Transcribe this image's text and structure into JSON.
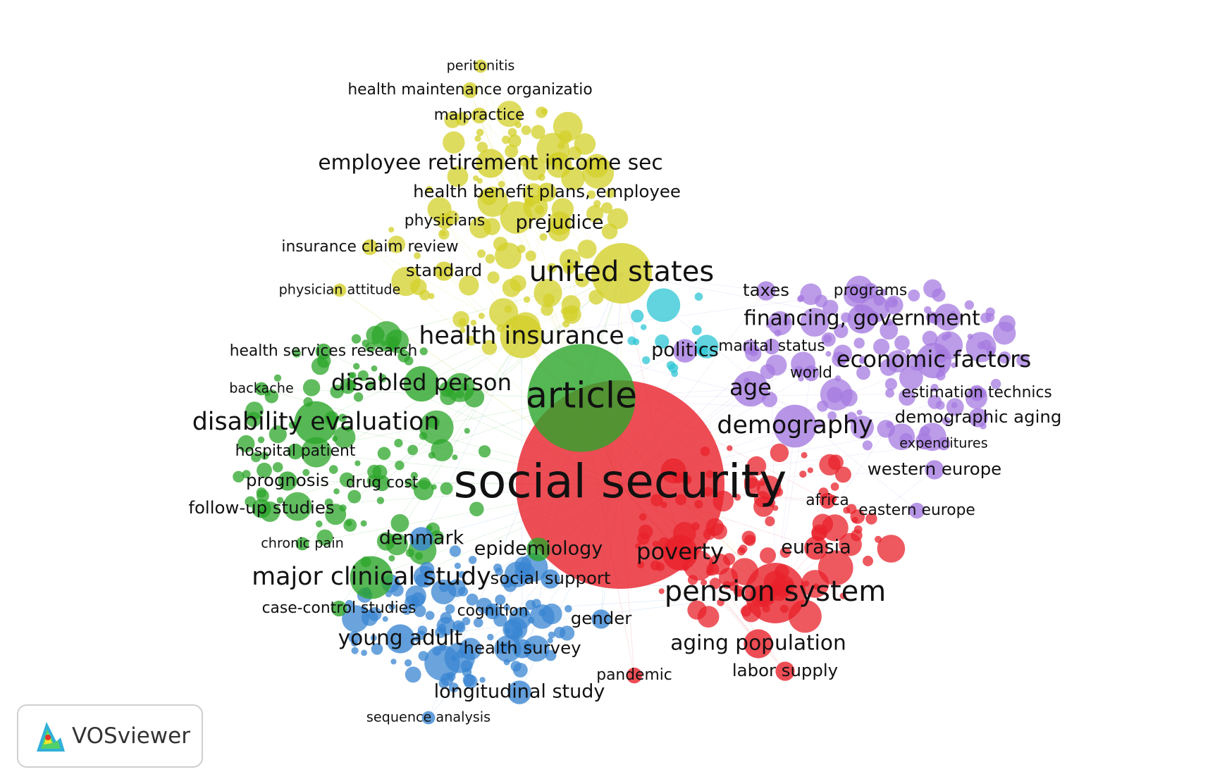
{
  "clusters": [
    {
      "id": "red",
      "color": "#e8212b"
    },
    {
      "id": "green",
      "color": "#2ca52a"
    },
    {
      "id": "blue",
      "color": "#3a86d2"
    },
    {
      "id": "yellow",
      "color": "#d3d02a"
    },
    {
      "id": "purple",
      "color": "#a57be0"
    },
    {
      "id": "cyan",
      "color": "#2ec5d4"
    }
  ],
  "keywords": [
    {
      "label": "social security",
      "cluster": "red",
      "weight": 10
    },
    {
      "label": "article",
      "cluster": "green",
      "weight": 7
    },
    {
      "label": "united states",
      "cluster": "yellow",
      "weight": 5
    },
    {
      "label": "health insurance",
      "cluster": "yellow",
      "weight": 4
    },
    {
      "label": "pension system",
      "cluster": "red",
      "weight": 5
    },
    {
      "label": "disability evaluation",
      "cluster": "green",
      "weight": 4
    },
    {
      "label": "major clinical study",
      "cluster": "green",
      "weight": 4
    },
    {
      "label": "demography",
      "cluster": "purple",
      "weight": 4
    },
    {
      "label": "age",
      "cluster": "purple",
      "weight": 3.5
    },
    {
      "label": "poverty",
      "cluster": "red",
      "weight": 3.5
    },
    {
      "label": "disabled person",
      "cluster": "green",
      "weight": 3.5
    },
    {
      "label": "economic factors",
      "cluster": "purple",
      "weight": 3.5
    },
    {
      "label": "employee retirement income sec",
      "cluster": "yellow",
      "weight": 3
    },
    {
      "label": "financing, government",
      "cluster": "purple",
      "weight": 3
    },
    {
      "label": "aging population",
      "cluster": "red",
      "weight": 3
    },
    {
      "label": "young adult",
      "cluster": "blue",
      "weight": 3
    },
    {
      "label": "longitudinal study",
      "cluster": "blue",
      "weight": 2.5
    },
    {
      "label": "epidemiology",
      "cluster": "green",
      "weight": 2.5
    },
    {
      "label": "denmark",
      "cluster": "blue",
      "weight": 2.5
    },
    {
      "label": "eurasia",
      "cluster": "red",
      "weight": 2.5
    },
    {
      "label": "politics",
      "cluster": "purple",
      "weight": 2.5
    },
    {
      "label": "prejudice",
      "cluster": "yellow",
      "weight": 2.5
    },
    {
      "label": "health benefit plans, employee",
      "cluster": "yellow",
      "weight": 2
    },
    {
      "label": "social support",
      "cluster": "blue",
      "weight": 2
    },
    {
      "label": "follow-up studies",
      "cluster": "green",
      "weight": 2
    },
    {
      "label": "gender",
      "cluster": "blue",
      "weight": 2
    },
    {
      "label": "health survey",
      "cluster": "blue",
      "weight": 2
    },
    {
      "label": "western europe",
      "cluster": "purple",
      "weight": 2
    },
    {
      "label": "labor supply",
      "cluster": "red",
      "weight": 2
    },
    {
      "label": "taxes",
      "cluster": "purple",
      "weight": 2
    },
    {
      "label": "prognosis",
      "cluster": "green",
      "weight": 2
    },
    {
      "label": "standard",
      "cluster": "yellow",
      "weight": 2
    },
    {
      "label": "demographic aging",
      "cluster": "purple",
      "weight": 2
    },
    {
      "label": "health services research",
      "cluster": "green",
      "weight": 1.5
    },
    {
      "label": "insurance claim review",
      "cluster": "yellow",
      "weight": 1.5
    },
    {
      "label": "physicians",
      "cluster": "yellow",
      "weight": 1.5
    },
    {
      "label": "health maintenance organizatio",
      "cluster": "yellow",
      "weight": 1.5
    },
    {
      "label": "malpractice",
      "cluster": "yellow",
      "weight": 1.5
    },
    {
      "label": "programs",
      "cluster": "purple",
      "weight": 1.5
    },
    {
      "label": "marital status",
      "cluster": "purple",
      "weight": 1.5
    },
    {
      "label": "estimation technics",
      "cluster": "purple",
      "weight": 1.5
    },
    {
      "label": "eastern europe",
      "cluster": "purple",
      "weight": 1.5
    },
    {
      "label": "africa",
      "cluster": "red",
      "weight": 1.5
    },
    {
      "label": "world",
      "cluster": "purple",
      "weight": 1.5
    },
    {
      "label": "hospital patient",
      "cluster": "green",
      "weight": 1.5
    },
    {
      "label": "drug cost",
      "cluster": "green",
      "weight": 1.5
    },
    {
      "label": "case-control studies",
      "cluster": "green",
      "weight": 1.5
    },
    {
      "label": "cognition",
      "cluster": "blue",
      "weight": 1.5
    },
    {
      "label": "pandemic",
      "cluster": "red",
      "weight": 1.5
    },
    {
      "label": "sequence analysis",
      "cluster": "blue",
      "weight": 1
    },
    {
      "label": "peritonitis",
      "cluster": "yellow",
      "weight": 1
    },
    {
      "label": "physician attitude",
      "cluster": "yellow",
      "weight": 1
    },
    {
      "label": "backache",
      "cluster": "green",
      "weight": 1
    },
    {
      "label": "chronic pain",
      "cluster": "green",
      "weight": 1
    },
    {
      "label": "expenditures",
      "cluster": "purple",
      "weight": 1
    }
  ],
  "logo": {
    "text": "VOSviewer"
  }
}
